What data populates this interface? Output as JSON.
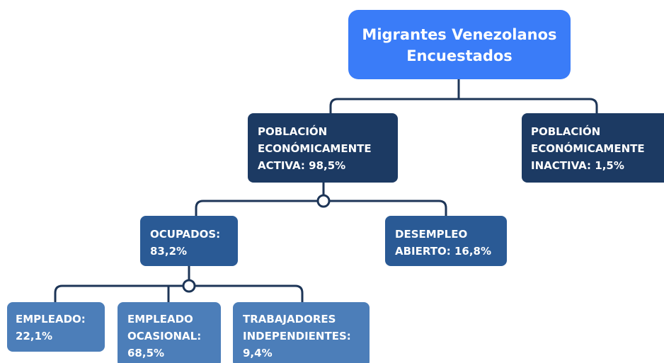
{
  "nodes": [
    {
      "label": [
        "Migrantes Venezolanos",
        "Encuestados"
      ]
    },
    {
      "label": [
        "POBLACIÓN",
        "ECONÓMICAMENTE",
        "ACTIVA: 98,5%"
      ]
    },
    {
      "label": [
        "POBLACIÓN",
        "ECONÓMICAMENTE",
        "INACTIVA: 1,5%"
      ]
    },
    {
      "label": [
        "OCUPADOS:",
        "83,2%"
      ]
    },
    {
      "label": [
        "DESEMPLEO",
        "ABIERTO: 16,8%"
      ]
    },
    {
      "label": [
        "EMPLEADO:",
        "22,1%"
      ]
    },
    {
      "label": [
        "EMPLEADO",
        "OCASIONAL:",
        "68,5%"
      ]
    },
    {
      "label": [
        "TRABAJADORES",
        "INDEPENDIENTES:",
        "9,4%"
      ]
    }
  ]
}
